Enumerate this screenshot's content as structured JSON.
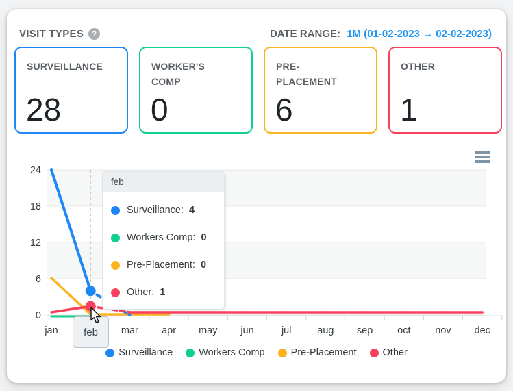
{
  "header": {
    "title": "VISIT TYPES",
    "help_icon": "?",
    "date_range_label": "DATE RANGE:",
    "date_range_value": "1M (01-02-2023 → 02-02-2023)"
  },
  "cards": [
    {
      "title": "SURVEILLANCE",
      "value": "28",
      "color": "#1e87f6"
    },
    {
      "title": "WORKER'S COMP",
      "value": "0",
      "color": "#10d08c"
    },
    {
      "title": "PRE-PLACEMENT",
      "value": "6",
      "color": "#fbb321"
    },
    {
      "title": "OTHER",
      "value": "1",
      "color": "#f8415e"
    }
  ],
  "chart_data": {
    "type": "line",
    "categories": [
      "jan",
      "feb",
      "mar",
      "apr",
      "may",
      "jun",
      "jul",
      "aug",
      "sep",
      "oct",
      "nov",
      "dec"
    ],
    "yticks": [
      0,
      6,
      12,
      18,
      24
    ],
    "ylim": [
      0,
      24
    ],
    "grid": "horizontal-rows-alternating",
    "legend_position": "bottom",
    "hovered_category": "feb",
    "series": [
      {
        "name": "Surveillance",
        "color": "#1e87f6",
        "values": [
          24,
          4,
          0,
          null,
          null,
          null,
          null,
          null,
          null,
          null,
          null,
          null
        ]
      },
      {
        "name": "Workers Comp",
        "color": "#10d08c",
        "values": [
          0,
          0,
          null,
          null,
          null,
          null,
          null,
          null,
          null,
          null,
          null,
          null
        ]
      },
      {
        "name": "Pre-Placement",
        "color": "#fbb321",
        "values": [
          6,
          0,
          0,
          0,
          null,
          null,
          null,
          null,
          null,
          null,
          null,
          null
        ]
      },
      {
        "name": "Other",
        "color": "#f8415e",
        "values": [
          0,
          1,
          0,
          0,
          0,
          0,
          0,
          0,
          0,
          0,
          0,
          0
        ]
      }
    ]
  },
  "tooltip": {
    "title": "feb",
    "rows": [
      {
        "label": "Surveillance:",
        "value": "4",
        "color": "#1e87f6"
      },
      {
        "label": "Workers Comp:",
        "value": "0",
        "color": "#10d08c"
      },
      {
        "label": "Pre-Placement:",
        "value": "0",
        "color": "#fbb321"
      },
      {
        "label": "Other:",
        "value": "1",
        "color": "#f8415e"
      }
    ]
  },
  "legend": [
    {
      "label": "Surveillance",
      "color": "#1e87f6"
    },
    {
      "label": "Workers Comp",
      "color": "#10d08c"
    },
    {
      "label": "Pre-Placement",
      "color": "#fbb321"
    },
    {
      "label": "Other",
      "color": "#f8415e"
    }
  ],
  "x_hover_label": "feb",
  "colors": {
    "accent_blue": "#2196f3",
    "grid_line": "#e9e9e9",
    "band_fill": "#f6f7f7",
    "axis_text": "#373d3f"
  }
}
